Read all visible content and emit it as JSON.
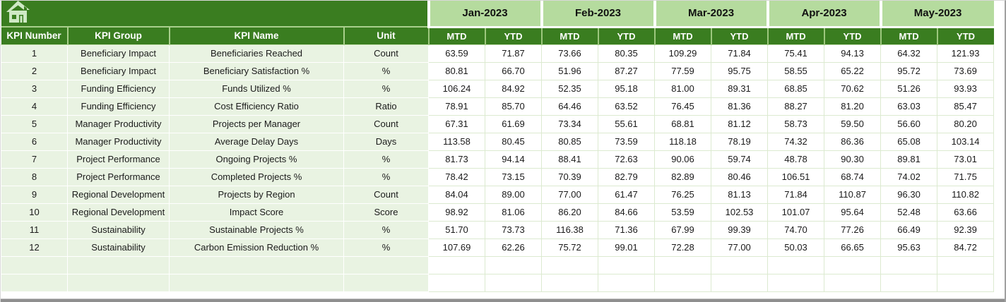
{
  "toolbar": {
    "home_icon": "home"
  },
  "columns": {
    "left_headers": [
      "KPI Number",
      "KPI Group",
      "KPI Name",
      "Unit"
    ]
  },
  "months": [
    {
      "label": "Jan-2023",
      "sub": [
        "MTD",
        "YTD"
      ]
    },
    {
      "label": "Feb-2023",
      "sub": [
        "MTD",
        "YTD"
      ]
    },
    {
      "label": "Mar-2023",
      "sub": [
        "MTD",
        "YTD"
      ]
    },
    {
      "label": "Apr-2023",
      "sub": [
        "MTD",
        "YTD"
      ]
    },
    {
      "label": "May-2023",
      "sub": [
        "MTD",
        "YTD"
      ]
    }
  ],
  "rows": [
    {
      "number": "1",
      "group": "Beneficiary Impact",
      "name": "Beneficiaries Reached",
      "unit": "Count",
      "values": [
        "63.59",
        "71.87",
        "73.66",
        "80.35",
        "109.29",
        "71.84",
        "75.41",
        "94.13",
        "64.32",
        "121.93"
      ]
    },
    {
      "number": "2",
      "group": "Beneficiary Impact",
      "name": "Beneficiary Satisfaction %",
      "unit": "%",
      "values": [
        "80.81",
        "66.70",
        "51.96",
        "87.27",
        "77.59",
        "95.75",
        "58.55",
        "65.22",
        "95.72",
        "73.69"
      ]
    },
    {
      "number": "3",
      "group": "Funding Efficiency",
      "name": "Funds Utilized %",
      "unit": "%",
      "values": [
        "106.24",
        "84.92",
        "52.35",
        "95.18",
        "81.00",
        "89.31",
        "68.85",
        "70.62",
        "51.26",
        "93.93"
      ]
    },
    {
      "number": "4",
      "group": "Funding Efficiency",
      "name": "Cost Efficiency Ratio",
      "unit": "Ratio",
      "values": [
        "78.91",
        "85.70",
        "64.46",
        "63.52",
        "76.45",
        "81.36",
        "88.27",
        "81.20",
        "63.03",
        "85.47"
      ]
    },
    {
      "number": "5",
      "group": "Manager Productivity",
      "name": "Projects per Manager",
      "unit": "Count",
      "values": [
        "67.31",
        "61.69",
        "73.34",
        "55.61",
        "68.81",
        "81.12",
        "58.73",
        "59.50",
        "56.60",
        "80.20"
      ]
    },
    {
      "number": "6",
      "group": "Manager Productivity",
      "name": "Average Delay Days",
      "unit": "Days",
      "values": [
        "113.58",
        "80.45",
        "80.85",
        "73.59",
        "118.18",
        "78.19",
        "74.32",
        "86.36",
        "65.08",
        "103.14"
      ]
    },
    {
      "number": "7",
      "group": "Project Performance",
      "name": "Ongoing Projects %",
      "unit": "%",
      "values": [
        "81.73",
        "94.14",
        "88.41",
        "72.63",
        "90.06",
        "59.74",
        "48.78",
        "90.30",
        "89.81",
        "73.01"
      ]
    },
    {
      "number": "8",
      "group": "Project Performance",
      "name": "Completed Projects %",
      "unit": "%",
      "values": [
        "78.42",
        "73.15",
        "70.39",
        "82.79",
        "82.89",
        "80.46",
        "106.51",
        "68.74",
        "74.02",
        "71.75"
      ]
    },
    {
      "number": "9",
      "group": "Regional Development",
      "name": "Projects by Region",
      "unit": "Count",
      "values": [
        "84.04",
        "89.00",
        "77.00",
        "61.47",
        "76.25",
        "81.13",
        "71.84",
        "110.87",
        "96.30",
        "110.82"
      ]
    },
    {
      "number": "10",
      "group": "Regional Development",
      "name": "Impact Score",
      "unit": "Score",
      "values": [
        "98.92",
        "81.06",
        "86.20",
        "84.66",
        "53.59",
        "102.53",
        "101.07",
        "95.64",
        "52.48",
        "63.66"
      ]
    },
    {
      "number": "11",
      "group": "Sustainability",
      "name": "Sustainable Projects %",
      "unit": "%",
      "values": [
        "51.70",
        "73.73",
        "116.38",
        "71.36",
        "67.99",
        "99.39",
        "74.70",
        "77.26",
        "66.49",
        "92.39"
      ]
    },
    {
      "number": "12",
      "group": "Sustainability",
      "name": "Carbon Emission Reduction %",
      "unit": "%",
      "values": [
        "107.69",
        "62.26",
        "75.72",
        "99.01",
        "72.28",
        "77.00",
        "50.03",
        "66.65",
        "95.63",
        "84.72"
      ]
    }
  ],
  "empty_rows": 2,
  "colors": {
    "header_dark_green": "#3a7d20",
    "month_light_green": "#b5db9e",
    "row_light_green": "#e9f3e2",
    "cell_border_green": "#dcead0",
    "home_icon_fill": "#cfe9c5",
    "window_edge_gray": "#8f8f8f"
  }
}
